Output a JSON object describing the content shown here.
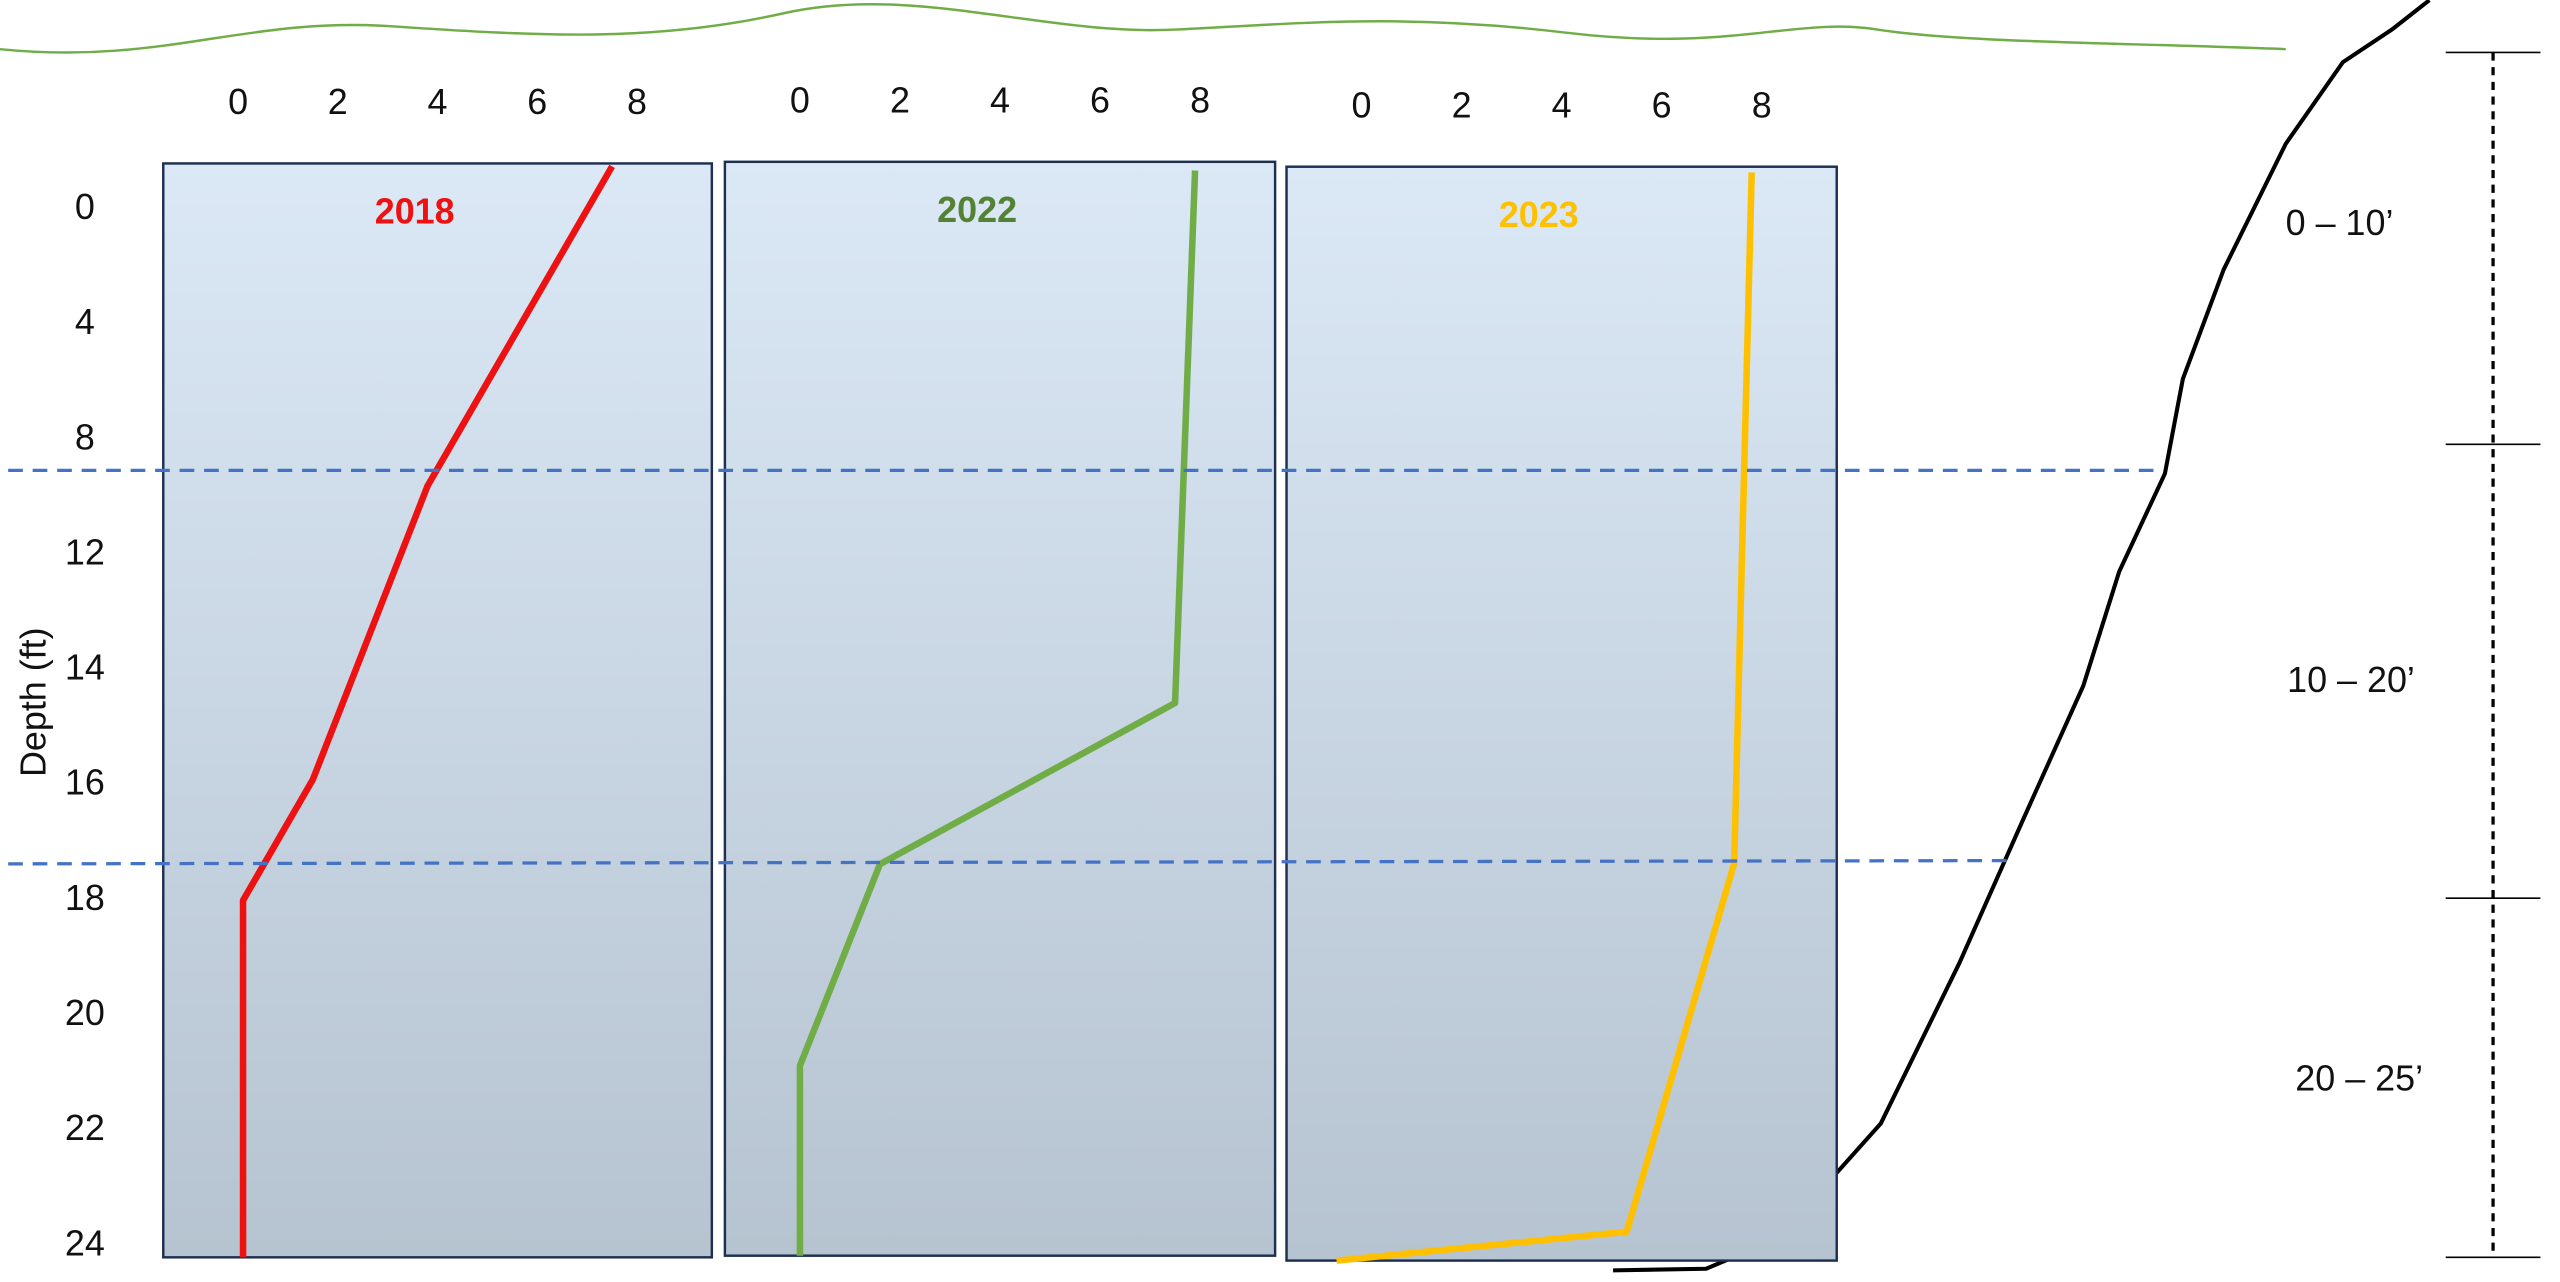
{
  "chart_data": [
    {
      "type": "line",
      "title": "2018",
      "title_color": "#ee1111",
      "color": "#ee1111",
      "ylabel": "Depth (ft)",
      "xlim": [
        -1.5,
        9.5
      ],
      "xticks": [
        0,
        2,
        4,
        6,
        8
      ],
      "ylim": [
        -1.6,
        24.2
      ],
      "yticks": [
        0,
        4,
        8,
        12,
        14,
        16,
        18,
        20,
        22,
        24
      ],
      "x": [
        7.5,
        3.8,
        1.5,
        0.1,
        0.1
      ],
      "y": [
        -1.5,
        9.6,
        15.9,
        18,
        24.2
      ]
    },
    {
      "type": "line",
      "title": "2022",
      "title_color": "#548235",
      "color": "#70ad47",
      "xlim": [
        -1.5,
        9.5
      ],
      "xticks": [
        0,
        2,
        4,
        6,
        8
      ],
      "ylim": [
        -1.6,
        24.2
      ],
      "x": [
        7.9,
        7.5,
        1.6,
        0,
        0
      ],
      "y": [
        -1.3,
        14.6,
        17.4,
        20.9,
        24.2
      ]
    },
    {
      "type": "line",
      "title": "2023",
      "title_color": "#ffc000",
      "color": "#ffc000",
      "xlim": [
        -1.5,
        9.5
      ],
      "xticks": [
        0,
        2,
        4,
        6,
        8
      ],
      "ylim": [
        -1.6,
        24.2
      ],
      "x": [
        7.8,
        7.45,
        5.3,
        -0.5
      ],
      "y": [
        -1.4,
        17.3,
        23.7,
        24.2
      ]
    }
  ],
  "annotations": [
    "0 – 10’",
    "10 – 20’",
    "20 – 25’"
  ]
}
